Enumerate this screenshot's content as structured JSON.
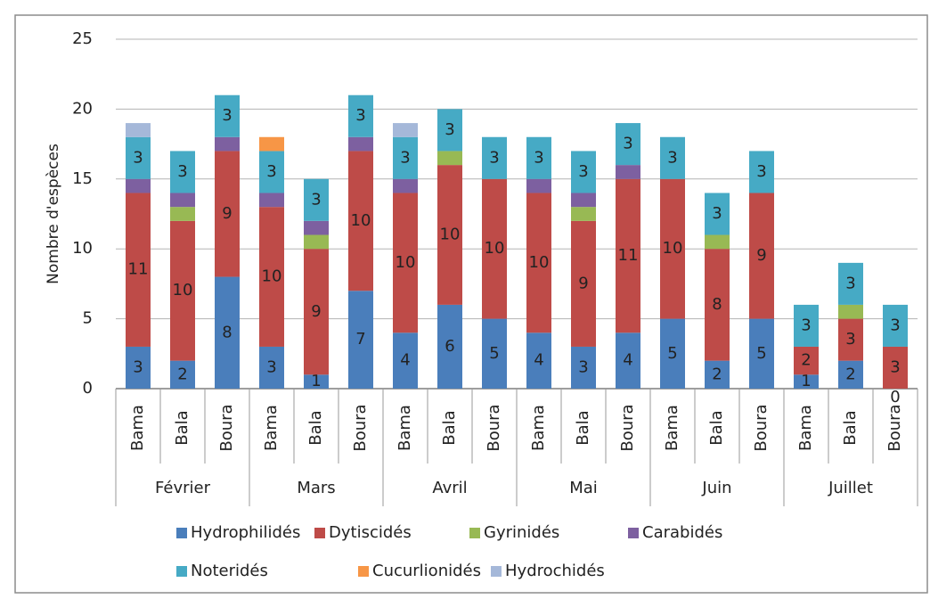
{
  "chart_data": {
    "type": "stacked_bar",
    "y_label": "Nombre d'espèces",
    "ylim": [
      0,
      25
    ],
    "yticks": [
      0,
      5,
      10,
      15,
      20,
      25
    ],
    "grid": true,
    "groups": [
      {
        "name": "Février",
        "categories": [
          "Bama",
          "Bala",
          "Boura"
        ]
      },
      {
        "name": "Mars",
        "categories": [
          "Bama",
          "Bala",
          "Boura"
        ]
      },
      {
        "name": "Avril",
        "categories": [
          "Bama",
          "Bala",
          "Boura"
        ]
      },
      {
        "name": "Mai",
        "categories": [
          "Bama",
          "Bala",
          "Boura"
        ]
      },
      {
        "name": "Juin",
        "categories": [
          "Bama",
          "Bala",
          "Boura"
        ]
      },
      {
        "name": "Juillet",
        "categories": [
          "Bama",
          "Bala",
          "Boura"
        ]
      }
    ],
    "series": [
      {
        "name": "Hydrophilidés",
        "color": "#4a7ebb",
        "data_labels": true,
        "values": [
          3,
          2,
          8,
          3,
          1,
          7,
          4,
          6,
          5,
          4,
          3,
          4,
          5,
          2,
          5,
          1,
          2,
          0
        ]
      },
      {
        "name": "Dytiscidés",
        "color": "#be4b48",
        "data_labels": true,
        "values": [
          11,
          10,
          9,
          10,
          9,
          10,
          10,
          10,
          10,
          10,
          9,
          11,
          10,
          8,
          9,
          2,
          3,
          3
        ]
      },
      {
        "name": "Gyrinidés",
        "color": "#98b954",
        "data_labels": false,
        "values": [
          0,
          1,
          0,
          0,
          1,
          0,
          0,
          1,
          0,
          0,
          1,
          0,
          0,
          1,
          0,
          0,
          1,
          0
        ]
      },
      {
        "name": "Carabidés",
        "color": "#7d60a0",
        "data_labels": false,
        "values": [
          1,
          1,
          1,
          1,
          1,
          1,
          1,
          0,
          0,
          1,
          1,
          1,
          0,
          0,
          0,
          0,
          0,
          0
        ]
      },
      {
        "name": "Noteridés",
        "color": "#46aac5",
        "data_labels": true,
        "values": [
          3,
          3,
          3,
          3,
          3,
          3,
          3,
          3,
          3,
          3,
          3,
          3,
          3,
          3,
          3,
          3,
          3,
          3
        ]
      },
      {
        "name": "Cucurlionidés",
        "color": "#f79646",
        "data_labels": false,
        "values": [
          0,
          0,
          0,
          1,
          0,
          0,
          0,
          0,
          0,
          0,
          0,
          0,
          0,
          0,
          0,
          0,
          0,
          0
        ]
      },
      {
        "name": "Hydrochidés",
        "color": "#a5b8d9",
        "data_labels": false,
        "values": [
          1,
          0,
          0,
          0,
          0,
          0,
          1,
          0,
          0,
          0,
          0,
          0,
          0,
          0,
          0,
          0,
          0,
          0
        ]
      }
    ]
  }
}
